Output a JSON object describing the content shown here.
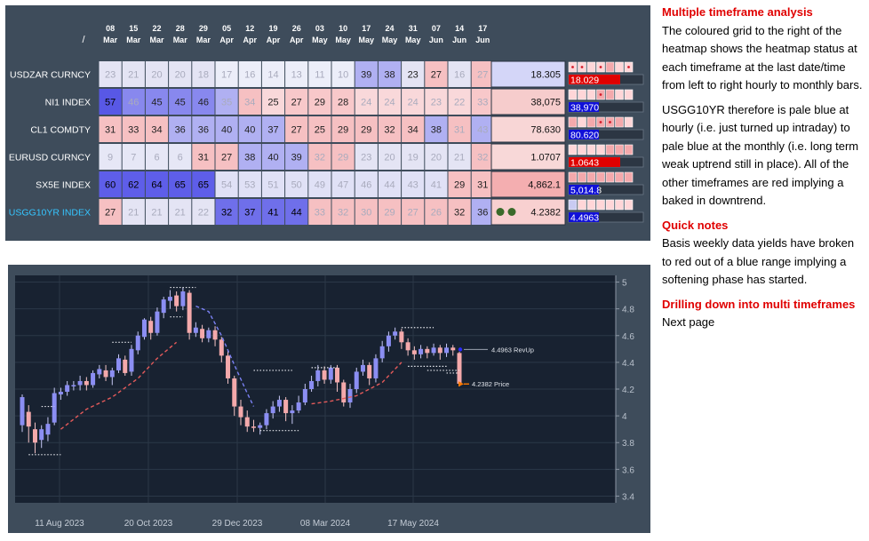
{
  "heatmap": {
    "slash": "/",
    "dates": [
      {
        "day": "08",
        "mon": "Mar"
      },
      {
        "day": "15",
        "mon": "Mar"
      },
      {
        "day": "22",
        "mon": "Mar"
      },
      {
        "day": "28",
        "mon": "Mar"
      },
      {
        "day": "29",
        "mon": "Mar"
      },
      {
        "day": "05",
        "mon": "Apr"
      },
      {
        "day": "12",
        "mon": "Apr"
      },
      {
        "day": "19",
        "mon": "Apr"
      },
      {
        "day": "26",
        "mon": "Apr"
      },
      {
        "day": "03",
        "mon": "May"
      },
      {
        "day": "10",
        "mon": "May"
      },
      {
        "day": "17",
        "mon": "May"
      },
      {
        "day": "24",
        "mon": "May"
      },
      {
        "day": "31",
        "mon": "May"
      },
      {
        "day": "07",
        "mon": "Jun"
      },
      {
        "day": "14",
        "mon": "Jun"
      },
      {
        "day": "17",
        "mon": "Jun"
      }
    ],
    "rows": [
      {
        "name": "USDZAR CURNCY",
        "cells": [
          23,
          21,
          20,
          20,
          18,
          17,
          16,
          14,
          13,
          11,
          10,
          39,
          38,
          23,
          27,
          16,
          27
        ],
        "price": "18.305",
        "sub": "18.029",
        "sub_color": "#e00000",
        "tf": [
          2,
          2,
          2,
          2,
          1,
          2,
          2
        ],
        "dots": [
          0,
          1,
          3,
          6
        ],
        "has_circles": false
      },
      {
        "name": "NI1 INDEX",
        "cells": [
          57,
          46,
          45,
          45,
          46,
          35,
          34,
          25,
          27,
          29,
          28,
          24,
          24,
          24,
          23,
          22,
          33
        ],
        "price": "38,075",
        "sub": "38,970",
        "sub_color": "#1010d8",
        "tf": [
          2,
          2,
          2,
          1,
          1,
          2,
          2
        ],
        "dots": [
          3
        ],
        "has_circles": false
      },
      {
        "name": "CL1 COMDTY",
        "cells": [
          31,
          33,
          34,
          36,
          36,
          40,
          40,
          37,
          27,
          25,
          29,
          29,
          32,
          34,
          38,
          31,
          43
        ],
        "price": "78.630",
        "sub": "80.620",
        "sub_color": "#1010d8",
        "tf": [
          1,
          2,
          1,
          1,
          1,
          1,
          2
        ],
        "dots": [
          3,
          4
        ],
        "has_circles": false
      },
      {
        "name": "EURUSD CURNCY",
        "cells": [
          9,
          7,
          6,
          6,
          31,
          27,
          38,
          40,
          39,
          32,
          29,
          23,
          20,
          19,
          20,
          21,
          32
        ],
        "price": "1.0707",
        "sub": "1.0643",
        "sub_color": "#e00000",
        "tf": [
          2,
          2,
          2,
          2,
          1,
          1,
          1
        ],
        "dots": [],
        "has_circles": false
      },
      {
        "name": "SX5E INDEX",
        "cells": [
          60,
          62,
          64,
          65,
          65,
          54,
          53,
          51,
          50,
          49,
          47,
          46,
          44,
          43,
          41,
          29,
          31
        ],
        "price": "4,862.1",
        "sub": "5,014.8",
        "sub_color": "#1010d8",
        "tf": [
          1,
          1,
          1,
          1,
          1,
          1,
          1
        ],
        "dots": [],
        "has_circles": false
      },
      {
        "name": "USGG10YR INDEX",
        "cells": [
          27,
          21,
          21,
          21,
          22,
          32,
          37,
          41,
          44,
          33,
          32,
          30,
          29,
          27,
          26,
          32,
          36
        ],
        "price": "4.2382",
        "sub": "4.4963",
        "sub_color": "#1010d8",
        "tf": [
          1,
          2,
          2,
          2,
          2,
          2,
          2
        ],
        "dots": [],
        "has_circles": true
      }
    ],
    "row_value_colors": [
      "#d4d6f8",
      "#f6cccc",
      "#f8d6d6",
      "#f8d8d8",
      "#f4aeb0",
      "#f8d0d0"
    ]
  },
  "chart_data": {
    "type": "candlestick",
    "x_tick_labels": [
      "11 Aug 2023",
      "20 Oct 2023",
      "29 Dec 2023",
      "08 Mar 2024",
      "17 May 2024"
    ],
    "y_tick_labels": [
      "5",
      "4.8",
      "4.6",
      "4.4",
      "4.2",
      "4",
      "3.8",
      "3.6",
      "3.4"
    ],
    "ylim": [
      3.35,
      5.05
    ],
    "annotations": [
      {
        "label": "4.4963 RevUp",
        "value": 4.4963,
        "color": "#2b2bff"
      },
      {
        "label": "4.2382 Price",
        "value": 4.2382,
        "color": "#ff7a00"
      }
    ],
    "candles": [
      [
        3.93,
        4.14,
        4.16,
        3.88
      ],
      [
        4.03,
        3.92,
        4.08,
        3.8
      ],
      [
        3.9,
        3.8,
        3.95,
        3.72
      ],
      [
        3.82,
        3.9,
        3.93,
        3.76
      ],
      [
        3.86,
        3.94,
        3.99,
        3.81
      ],
      [
        3.95,
        4.17,
        4.21,
        3.93
      ],
      [
        4.16,
        4.18,
        4.21,
        4.12
      ],
      [
        4.18,
        4.23,
        4.26,
        4.15
      ],
      [
        4.22,
        4.23,
        4.26,
        4.19
      ],
      [
        4.23,
        4.26,
        4.3,
        4.19
      ],
      [
        4.26,
        4.23,
        4.29,
        4.19
      ],
      [
        4.23,
        4.32,
        4.34,
        4.21
      ],
      [
        4.31,
        4.35,
        4.38,
        4.28
      ],
      [
        4.34,
        4.29,
        4.38,
        4.26
      ],
      [
        4.29,
        4.34,
        4.36,
        4.23
      ],
      [
        4.34,
        4.43,
        4.46,
        4.32
      ],
      [
        4.42,
        4.32,
        4.45,
        4.3
      ],
      [
        4.33,
        4.5,
        4.53,
        4.3
      ],
      [
        4.49,
        4.6,
        4.63,
        4.46
      ],
      [
        4.59,
        4.72,
        4.73,
        4.57
      ],
      [
        4.71,
        4.62,
        4.74,
        4.57
      ],
      [
        4.62,
        4.78,
        4.81,
        4.6
      ],
      [
        4.77,
        4.87,
        4.89,
        4.73
      ],
      [
        4.86,
        4.89,
        4.94,
        4.8
      ],
      [
        4.9,
        4.82,
        4.93,
        4.78
      ],
      [
        4.82,
        4.93,
        4.96,
        4.79
      ],
      [
        4.92,
        4.62,
        4.94,
        4.57
      ],
      [
        4.62,
        4.66,
        4.7,
        4.59
      ],
      [
        4.65,
        4.58,
        4.68,
        4.55
      ],
      [
        4.58,
        4.64,
        4.66,
        4.55
      ],
      [
        4.64,
        4.57,
        4.67,
        4.52
      ],
      [
        4.57,
        4.45,
        4.59,
        4.4
      ],
      [
        4.45,
        4.28,
        4.49,
        4.24
      ],
      [
        4.28,
        4.07,
        4.3,
        4.0
      ],
      [
        4.07,
        3.99,
        4.12,
        3.93
      ],
      [
        3.99,
        3.92,
        4.04,
        3.88
      ],
      [
        3.92,
        3.91,
        3.97,
        3.88
      ],
      [
        3.91,
        3.93,
        3.95,
        3.86
      ],
      [
        3.93,
        4.02,
        4.05,
        3.9
      ],
      [
        4.02,
        4.07,
        4.11,
        3.98
      ],
      [
        4.07,
        4.12,
        4.15,
        4.03
      ],
      [
        4.12,
        4.02,
        4.14,
        3.96
      ],
      [
        4.02,
        4.04,
        4.08,
        3.94
      ],
      [
        4.04,
        4.1,
        4.15,
        4.02
      ],
      [
        4.1,
        4.2,
        4.24,
        4.08
      ],
      [
        4.2,
        4.26,
        4.3,
        4.18
      ],
      [
        4.26,
        4.34,
        4.38,
        4.22
      ],
      [
        4.34,
        4.27,
        4.37,
        4.24
      ],
      [
        4.27,
        4.36,
        4.38,
        4.24
      ],
      [
        4.36,
        4.25,
        4.38,
        4.18
      ],
      [
        4.25,
        4.1,
        4.27,
        4.07
      ],
      [
        4.1,
        4.2,
        4.24,
        4.06
      ],
      [
        4.2,
        4.33,
        4.36,
        4.17
      ],
      [
        4.33,
        4.38,
        4.42,
        4.3
      ],
      [
        4.38,
        4.28,
        4.4,
        4.23
      ],
      [
        4.28,
        4.43,
        4.46,
        4.25
      ],
      [
        4.43,
        4.52,
        4.56,
        4.4
      ],
      [
        4.52,
        4.6,
        4.63,
        4.48
      ],
      [
        4.6,
        4.63,
        4.66,
        4.57
      ],
      [
        4.63,
        4.55,
        4.65,
        4.5
      ],
      [
        4.55,
        4.49,
        4.58,
        4.45
      ],
      [
        4.49,
        4.46,
        4.52,
        4.42
      ],
      [
        4.46,
        4.5,
        4.53,
        4.43
      ],
      [
        4.5,
        4.47,
        4.52,
        4.43
      ],
      [
        4.47,
        4.51,
        4.54,
        4.45
      ],
      [
        4.51,
        4.47,
        4.53,
        4.42
      ],
      [
        4.47,
        4.51,
        4.54,
        4.44
      ],
      [
        4.51,
        4.49,
        4.53,
        4.45
      ],
      [
        4.47,
        4.24,
        4.48,
        4.22
      ]
    ]
  },
  "notes": {
    "heading1": "Multiple timeframe analysis",
    "para1": "The coloured grid to the right of the heatmap shows the heatmap status at each timeframe at the last date/time from left to right hourly to monthly bars.",
    "para2": "USGG10YR therefore is pale blue at hourly (i.e. just turned up intraday) to pale blue at the monthly (i.e. long term weak uptrend still in place).  All of the other timeframes are red implying a baked in downtrend.",
    "heading2": "Quick notes",
    "para3": "Basis weekly data yields have broken to red out of a blue range implying a softening phase has started.",
    "heading3": "Drilling down into multi timeframes",
    "para4": "Next page"
  }
}
